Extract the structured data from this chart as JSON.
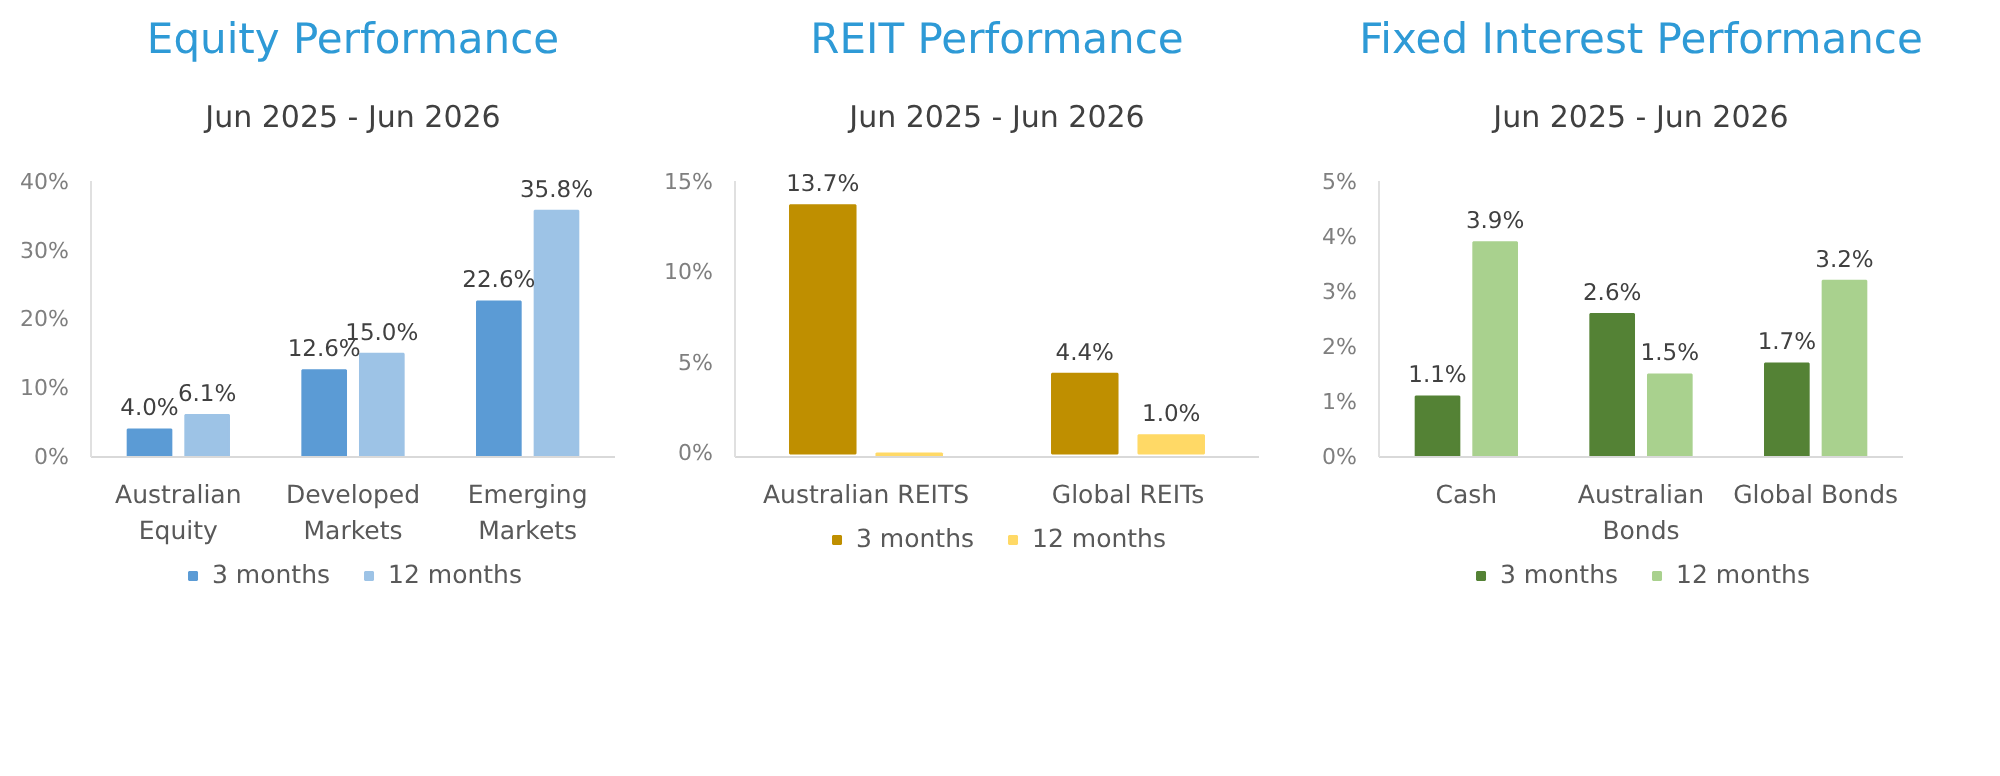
{
  "chart_data": [
    {
      "type": "bar",
      "title": "Equity Performance",
      "subtitle": "Jun 2025 - Jun 2026",
      "categories": [
        "Australian\nEquity",
        "Developed\nMarkets",
        "Emerging\nMarkets"
      ],
      "series": [
        {
          "name": "3 months",
          "color": "#5b9bd5",
          "values": [
            4.0,
            12.6,
            22.6
          ],
          "value_labels": [
            "4.0%",
            "12.6%",
            "22.6%"
          ]
        },
        {
          "name": "12 months",
          "color": "#9dc3e6",
          "values": [
            6.1,
            15.0,
            35.8
          ],
          "value_labels": [
            "6.1%",
            "15.0%",
            "35.8%"
          ]
        }
      ],
      "ylim": [
        0,
        40
      ],
      "yticks": [
        {
          "value": 0,
          "label": "0%"
        },
        {
          "value": 10,
          "label": "10%"
        },
        {
          "value": 20,
          "label": "20%"
        },
        {
          "value": 30,
          "label": "30%"
        },
        {
          "value": 40,
          "label": "40%"
        }
      ],
      "legend": "bottom"
    },
    {
      "type": "bar",
      "title": "REIT Performance",
      "subtitle": "Jun 2025 - Jun 2026",
      "categories": [
        "Australian REITS",
        "Global REITs"
      ],
      "series": [
        {
          "name": "3 months",
          "color": "#bf8f00",
          "values": [
            13.7,
            4.4
          ],
          "value_labels": [
            "13.7%",
            "4.4%"
          ]
        },
        {
          "name": "12 months",
          "color": "#ffd966",
          "values": [
            -0.1,
            1.0
          ],
          "value_labels": [
            null,
            "1.0%"
          ]
        }
      ],
      "ylim": [
        -0.2,
        15
      ],
      "yticks": [
        {
          "value": 0,
          "label": "0%"
        },
        {
          "value": 5,
          "label": "5%"
        },
        {
          "value": 10,
          "label": "10%"
        },
        {
          "value": 15,
          "label": "15%"
        }
      ],
      "legend": "bottom"
    },
    {
      "type": "bar",
      "title": "Fixed Interest Performance",
      "subtitle": "Jun 2025 - Jun 2026",
      "categories": [
        "Cash",
        "Australian\nBonds",
        "Global Bonds"
      ],
      "series": [
        {
          "name": "3 months",
          "color": "#548235",
          "values": [
            1.1,
            2.6,
            1.7
          ],
          "value_labels": [
            "1.1%",
            "2.6%",
            "1.7%"
          ]
        },
        {
          "name": "12 months",
          "color": "#a9d18e",
          "values": [
            3.9,
            1.5,
            3.2
          ],
          "value_labels": [
            "3.9%",
            "1.5%",
            "3.2%"
          ]
        }
      ],
      "ylim": [
        0,
        5
      ],
      "yticks": [
        {
          "value": 0,
          "label": "0%"
        },
        {
          "value": 1,
          "label": "1%"
        },
        {
          "value": 2,
          "label": "2%"
        },
        {
          "value": 3,
          "label": "3%"
        },
        {
          "value": 4,
          "label": "4%"
        },
        {
          "value": 5,
          "label": "5%"
        }
      ],
      "legend": "bottom"
    }
  ]
}
